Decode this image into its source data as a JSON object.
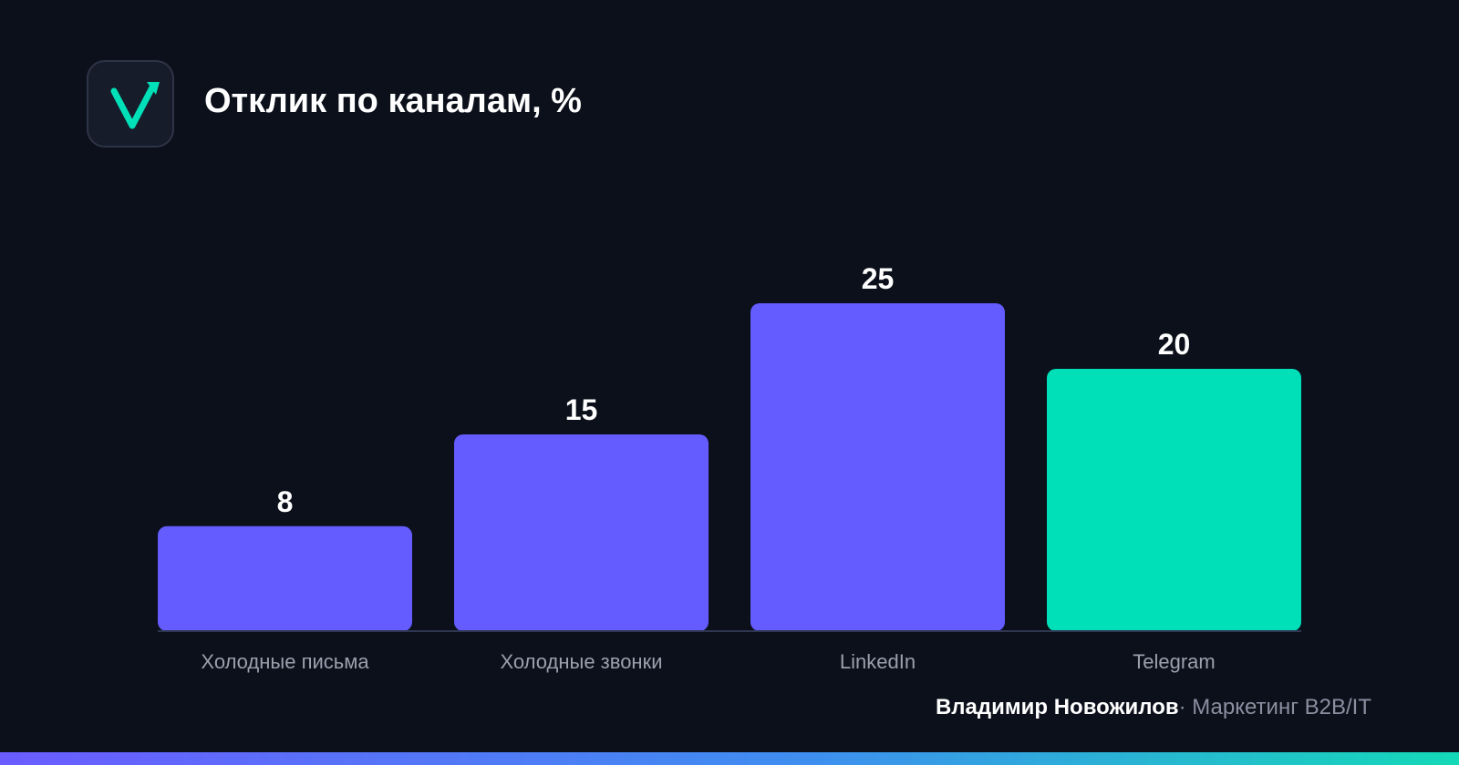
{
  "header": {
    "title": "Отклик по каналам, %"
  },
  "logo": {
    "icon": "checkmark-arrow-icon",
    "color": "#00e0b8"
  },
  "chart_data": {
    "type": "bar",
    "title": "Отклик по каналам, %",
    "xlabel": "",
    "ylabel": "",
    "categories": [
      "Холодные письма",
      "Холодные звонки",
      "LinkedIn",
      "Telegram"
    ],
    "values": [
      8,
      15,
      25,
      20
    ],
    "value_labels": [
      "8",
      "15",
      "25",
      "20"
    ],
    "bar_colors": [
      "#645cff",
      "#645cff",
      "#645cff",
      "#00e0b8"
    ],
    "ylim": [
      0,
      25
    ],
    "grid": false,
    "legend": "none"
  },
  "footer": {
    "author": "Владимир Новожилов",
    "separator": "·",
    "role": "Маркетинг B2B/IT"
  },
  "colors": {
    "background": "#0b101b",
    "accent": "#00e0b8",
    "primary_bar": "#645cff",
    "axis_label": "#9aa0ad"
  }
}
